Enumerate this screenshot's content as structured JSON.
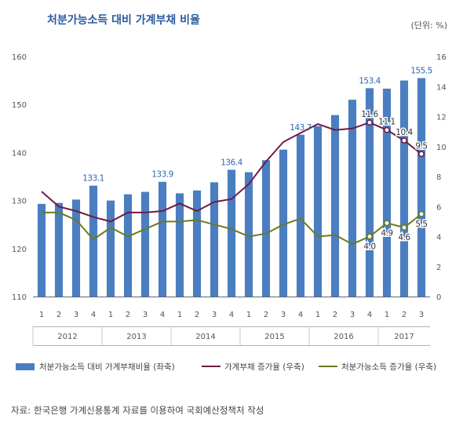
{
  "title": "처분가능소득 대비 가계부채 비율",
  "unit": "(단위: %)",
  "source": {
    "label": "자료:",
    "text": "한국은행 가계신용통계 자료를 이용하여 국회예산정책처 작성"
  },
  "colors": {
    "bar": "#4a7ec0",
    "debt_line": "#6e1c46",
    "income_line": "#6b7a1f",
    "label_blue": "#2c67b2"
  },
  "chart_data": {
    "type": "bar",
    "quarters": [
      "1",
      "2",
      "3",
      "4",
      "1",
      "2",
      "3",
      "4",
      "1",
      "2",
      "3",
      "4",
      "1",
      "2",
      "3",
      "4",
      "1",
      "2",
      "3",
      "4",
      "1",
      "2",
      "3"
    ],
    "years": [
      "2012",
      "2013",
      "2014",
      "2015",
      "2016",
      "2017"
    ],
    "y_left": {
      "min": 110,
      "max": 160,
      "ticks": [
        "110",
        "120",
        "130",
        "140",
        "150",
        "160"
      ]
    },
    "y_right": {
      "min": 0,
      "max": 16,
      "ticks": [
        "0",
        "2",
        "4",
        "6",
        "8",
        "10",
        "12",
        "14",
        "16"
      ]
    },
    "series": [
      {
        "name": "처분가능소득 대비 가계부채비율 (좌축)",
        "type": "bar",
        "axis": "left",
        "values": [
          129.3,
          129.5,
          130.2,
          133.1,
          130.0,
          131.3,
          131.8,
          133.9,
          131.5,
          132.1,
          133.8,
          136.4,
          135.9,
          138.4,
          140.6,
          143.7,
          145.5,
          147.8,
          151.0,
          153.4,
          153.3,
          155.0,
          155.5
        ]
      },
      {
        "name": "가계부채 증가율 (우축)",
        "type": "line",
        "axis": "right",
        "values": [
          7.0,
          6.0,
          5.7,
          5.3,
          5.0,
          5.6,
          5.6,
          5.7,
          6.2,
          5.7,
          6.3,
          6.5,
          7.5,
          9.0,
          10.3,
          10.9,
          11.5,
          11.1,
          11.2,
          11.6,
          11.1,
          10.4,
          9.5
        ]
      },
      {
        "name": "처분가능소득 증가율 (우축)",
        "type": "line",
        "axis": "right",
        "values": [
          5.6,
          5.6,
          5.1,
          3.8,
          4.6,
          4.0,
          4.5,
          5.0,
          5.0,
          5.1,
          4.8,
          4.5,
          4.0,
          4.2,
          4.8,
          5.2,
          4.0,
          4.1,
          3.5,
          4.0,
          4.9,
          4.6,
          5.5
        ]
      }
    ],
    "bar_labels": [
      {
        "index": 3,
        "text": "133.1"
      },
      {
        "index": 7,
        "text": "133.9"
      },
      {
        "index": 11,
        "text": "136.4"
      },
      {
        "index": 15,
        "text": "143.7"
      },
      {
        "index": 19,
        "text": "153.4"
      },
      {
        "index": 22,
        "text": "155.5"
      }
    ],
    "debt_labels": [
      {
        "index": 19,
        "text": "11.6"
      },
      {
        "index": 20,
        "text": "11.1"
      },
      {
        "index": 21,
        "text": "10.4"
      },
      {
        "index": 22,
        "text": "9.5"
      }
    ],
    "income_labels": [
      {
        "index": 19,
        "text": "4.0"
      },
      {
        "index": 20,
        "text": "4.9"
      },
      {
        "index": 21,
        "text": "4.6"
      },
      {
        "index": 22,
        "text": "5.5"
      }
    ],
    "legend": [
      {
        "label": "처분가능소득 대비 가계부채비율 (좌축)",
        "kind": "bar"
      },
      {
        "label": "가계부채 증가율 (우축)",
        "kind": "debt"
      },
      {
        "label": "처분가능소득 증가율 (우축)",
        "kind": "income"
      }
    ]
  }
}
